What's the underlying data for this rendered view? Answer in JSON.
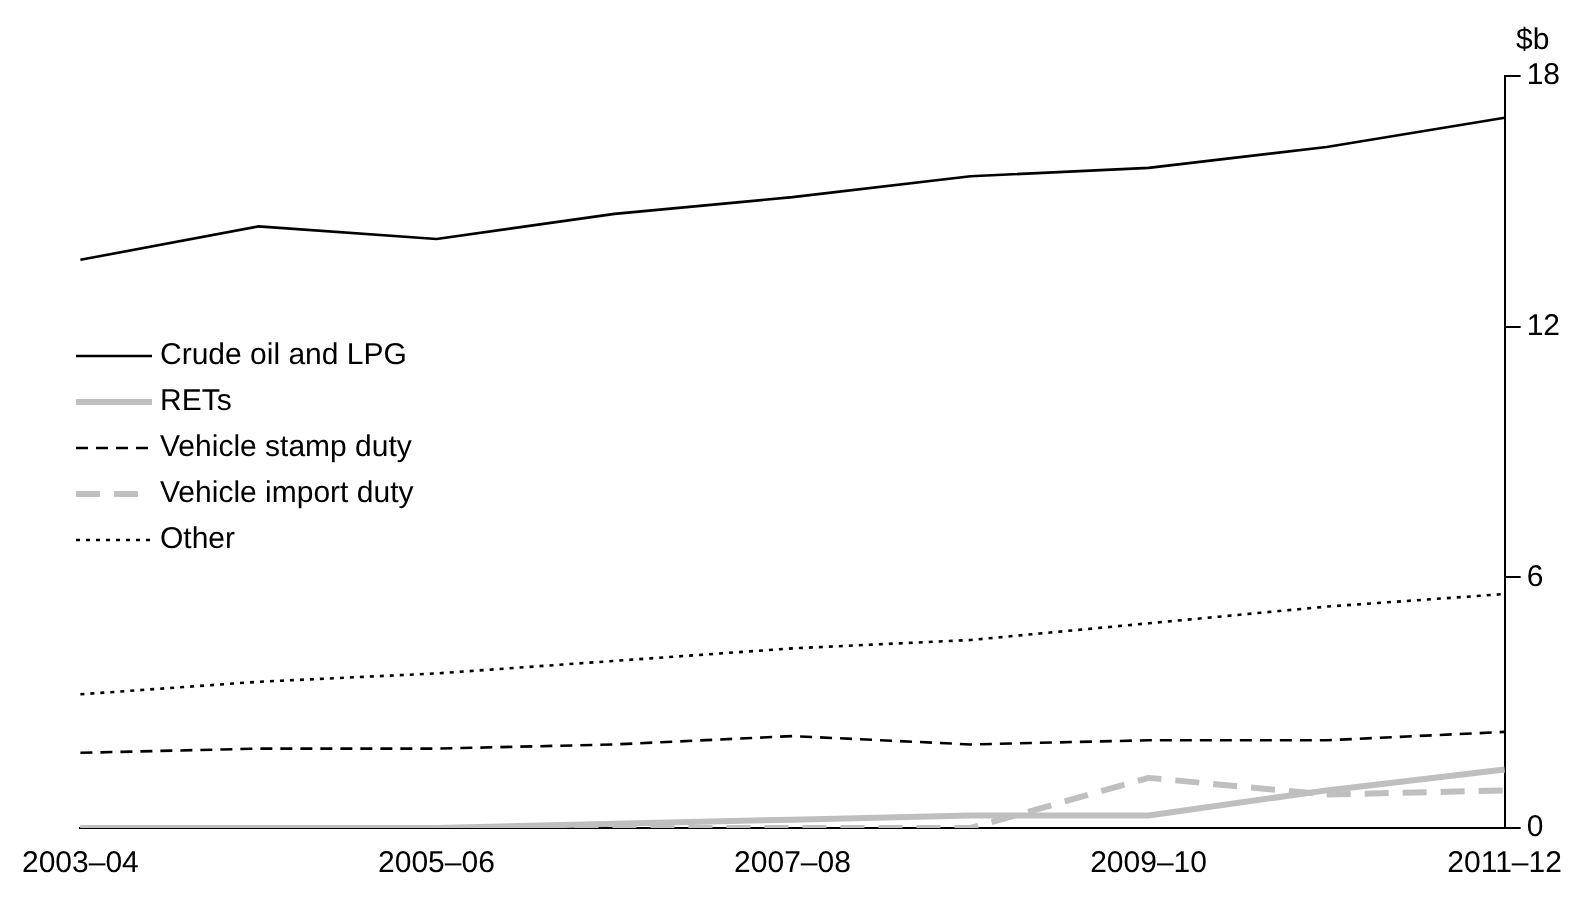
{
  "chart_data": {
    "type": "line",
    "ylabel": "$b",
    "categories": [
      "2003–04",
      null,
      "2005–06",
      null,
      "2007–08",
      null,
      "2009–10",
      null,
      "2011–12"
    ],
    "series": [
      {
        "name": "Crude oil and LPG",
        "color": "#000000",
        "line_style": "solid",
        "values": [
          13.6,
          14.4,
          14.1,
          14.7,
          15.1,
          15.6,
          15.8,
          16.3,
          17.0
        ]
      },
      {
        "name": "RETs",
        "color": "#bfbfbf",
        "line_style": "solid",
        "values": [
          0.0,
          0.0,
          0.0,
          0.1,
          0.2,
          0.3,
          0.3,
          0.9,
          1.4
        ]
      },
      {
        "name": "Vehicle stamp duty",
        "color": "#000000",
        "line_style": "dashed",
        "values": [
          1.8,
          1.9,
          1.9,
          2.0,
          2.2,
          2.0,
          2.1,
          2.1,
          2.3
        ]
      },
      {
        "name": "Vehicle import duty",
        "color": "#bfbfbf",
        "line_style": "dashed",
        "values": [
          0.0,
          0.0,
          0.0,
          0.0,
          0.0,
          0.0,
          1.2,
          0.8,
          0.9
        ]
      },
      {
        "name": "Other",
        "color": "#000000",
        "line_style": "dotted",
        "values": [
          3.2,
          3.5,
          3.7,
          4.0,
          4.3,
          4.5,
          4.9,
          5.3,
          5.6
        ]
      }
    ],
    "ylim": [
      0,
      18
    ],
    "yticks": [
      0,
      6,
      12,
      18
    ],
    "legend": "left",
    "grid": false,
    "marker": "none"
  }
}
